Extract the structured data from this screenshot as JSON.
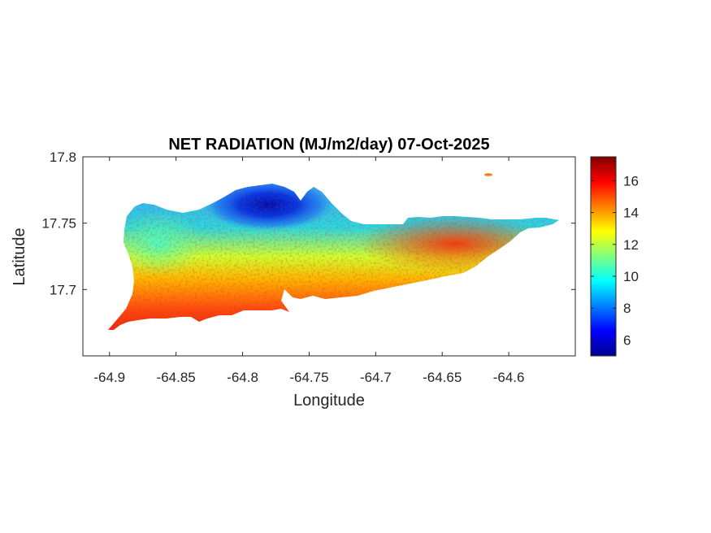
{
  "chart_data": {
    "type": "heatmap",
    "title": "NET RADIATION (MJ/m2/day) 07-Oct-2025",
    "xlabel": "Longitude",
    "ylabel": "Latitude",
    "xlim": [
      -64.92,
      -64.55
    ],
    "ylim": [
      17.65,
      17.8
    ],
    "xticks": [
      -64.9,
      -64.85,
      -64.8,
      -64.75,
      -64.7,
      -64.65,
      -64.6
    ],
    "xtick_labels": [
      "-64.9",
      "-64.85",
      "-64.8",
      "-64.75",
      "-64.7",
      "-64.65",
      "-64.6"
    ],
    "yticks": [
      17.7,
      17.75,
      17.8
    ],
    "ytick_labels": [
      "17.7",
      "17.75",
      "17.8"
    ],
    "colorbar": {
      "range": [
        5,
        17.5
      ],
      "ticks": [
        6,
        8,
        10,
        12,
        14,
        16
      ],
      "tick_labels": [
        "6",
        "8",
        "10",
        "12",
        "14",
        "16"
      ],
      "colormap": "jet"
    },
    "grid": false,
    "field_description": {
      "min_region": {
        "lon": -64.78,
        "lat": 17.76,
        "value": 5.5
      },
      "north_coast_value": 9.5,
      "west_central_value": 12.5,
      "south_east_value": 16.5
    }
  }
}
